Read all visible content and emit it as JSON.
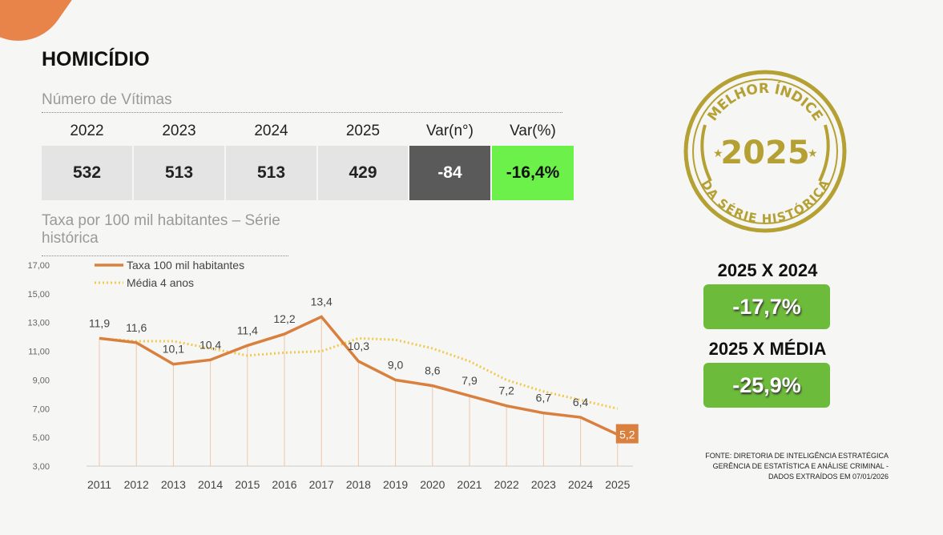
{
  "title": "HOMICÍDIO",
  "victims": {
    "subtitle": "Número de Vítimas",
    "headers": [
      "2022",
      "2023",
      "2024",
      "2025",
      "Var(n°)",
      "Var(%)"
    ],
    "values": [
      "532",
      "513",
      "513",
      "429",
      "-84",
      "-16,4%"
    ]
  },
  "rate_subtitle": "Taxa por 100 mil habitantes – Série histórica",
  "badge": {
    "top": "MELHOR ÍNDICE",
    "year": "2025",
    "bottom": "DA SÉRIE HISTÓRICA"
  },
  "comparisons": [
    {
      "label": "2025 X 2024",
      "value": "-17,7%"
    },
    {
      "label": "2025 X MÉDIA",
      "value": "-25,9%"
    }
  ],
  "source": [
    "FONTE: DIRETORIA DE INTELIGÊNCIA ESTRATÉGICA",
    "GERÊNCIA DE ESTATÍSTICA E ANÁLISE CRIMINAL -",
    "DADOS EXTRAÍDOS EM 07/01/2026"
  ],
  "colors": {
    "rate": "#d9803e",
    "avg": "#f2c94c",
    "neg_dark": "#5a5a5a",
    "neg_green": "#6cf04a",
    "badge_gold": "#b5a133"
  },
  "chart_data": {
    "type": "line",
    "x": [
      "2011",
      "2012",
      "2013",
      "2014",
      "2015",
      "2016",
      "2017",
      "2018",
      "2019",
      "2020",
      "2021",
      "2022",
      "2023",
      "2024",
      "2025"
    ],
    "series": [
      {
        "name": "Taxa 100 mil habitantes",
        "values": [
          11.9,
          11.6,
          10.1,
          10.4,
          11.4,
          12.2,
          13.4,
          10.3,
          9.0,
          8.6,
          7.9,
          7.2,
          6.7,
          6.4,
          5.2
        ],
        "labels": [
          "11,9",
          "11,6",
          "10,1",
          "10,4",
          "11,4",
          "12,2",
          "13,4",
          "10,3",
          "9,0",
          "8,6",
          "7,9",
          "7,2",
          "6,7",
          "6,4",
          "5,2"
        ]
      },
      {
        "name": "Média 4 anos",
        "values": [
          11.9,
          11.7,
          11.7,
          11.2,
          10.7,
          10.9,
          11.0,
          11.9,
          11.8,
          11.2,
          10.3,
          9.0,
          8.2,
          7.6,
          7.0
        ]
      }
    ],
    "yticks": [
      "3,00",
      "5,00",
      "7,00",
      "9,00",
      "11,00",
      "13,00",
      "15,00",
      "17,00"
    ],
    "ylim": [
      3,
      17
    ],
    "legend": "top-left"
  }
}
